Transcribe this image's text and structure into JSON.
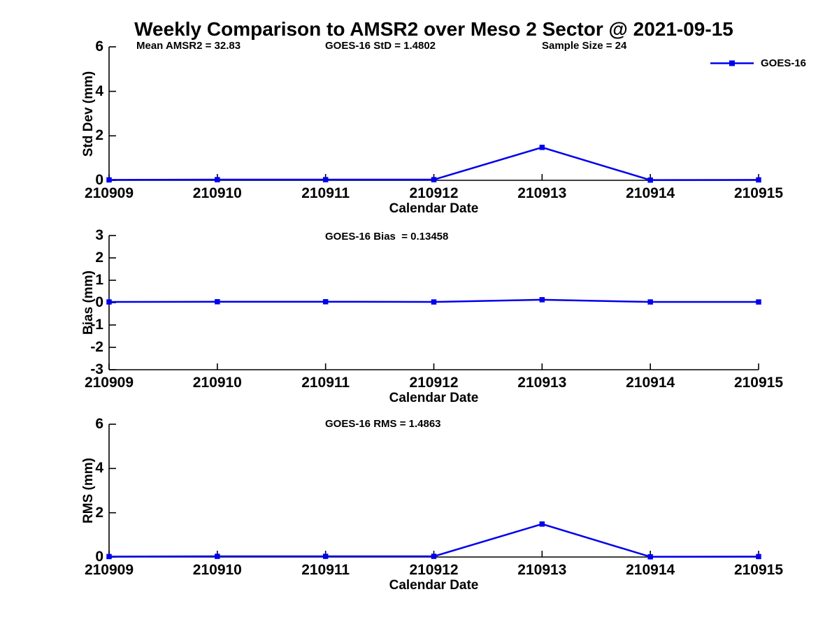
{
  "title": "Weekly Comparison to AMSR2 over Meso 2 Sector @ 2021-09-15",
  "legend": {
    "label": "GOES-16"
  },
  "colors": {
    "line": "#0000ee",
    "axis": "#000000",
    "text": "#000000",
    "background": "#ffffff"
  },
  "chart_data": {
    "type": "line",
    "series_name": "GOES-16",
    "marker": "square",
    "legend_position": "top-right",
    "grid": false,
    "xlabel": "Calendar Date",
    "x_categories": [
      "210909",
      "210910",
      "210911",
      "210912",
      "210913",
      "210914",
      "210915"
    ],
    "subplots": [
      {
        "name": "std-dev",
        "ylabel": "Std Dev (mm)",
        "ylim": [
          0,
          6
        ],
        "yticks": [
          0,
          2,
          4,
          6
        ],
        "values": [
          0.02,
          0.03,
          0.03,
          0.03,
          1.48,
          0.01,
          0.02
        ],
        "annotations": [
          "Mean AMSR2 = 32.83",
          "GOES-16 StD = 1.4802",
          "Sample Size = 24"
        ]
      },
      {
        "name": "bias",
        "ylabel": "Bias (mm)",
        "ylim": [
          -3,
          3
        ],
        "yticks": [
          -3,
          -2,
          -1,
          0,
          1,
          2,
          3
        ],
        "values": [
          0.03,
          0.04,
          0.04,
          0.03,
          0.13,
          0.03,
          0.03
        ],
        "annotations": [
          "GOES-16 Bias  = 0.13458"
        ]
      },
      {
        "name": "rms",
        "ylabel": "RMS (mm)",
        "ylim": [
          0,
          6
        ],
        "yticks": [
          0,
          2,
          4,
          6
        ],
        "values": [
          0.02,
          0.03,
          0.03,
          0.03,
          1.49,
          0.01,
          0.02
        ],
        "annotations": [
          "GOES-16 RMS = 1.4863"
        ]
      }
    ],
    "stats": {
      "mean_amsr2": 32.83,
      "goes16_std": 1.4802,
      "sample_size": 24,
      "goes16_bias": 0.13458,
      "goes16_rms": 1.4863
    }
  }
}
